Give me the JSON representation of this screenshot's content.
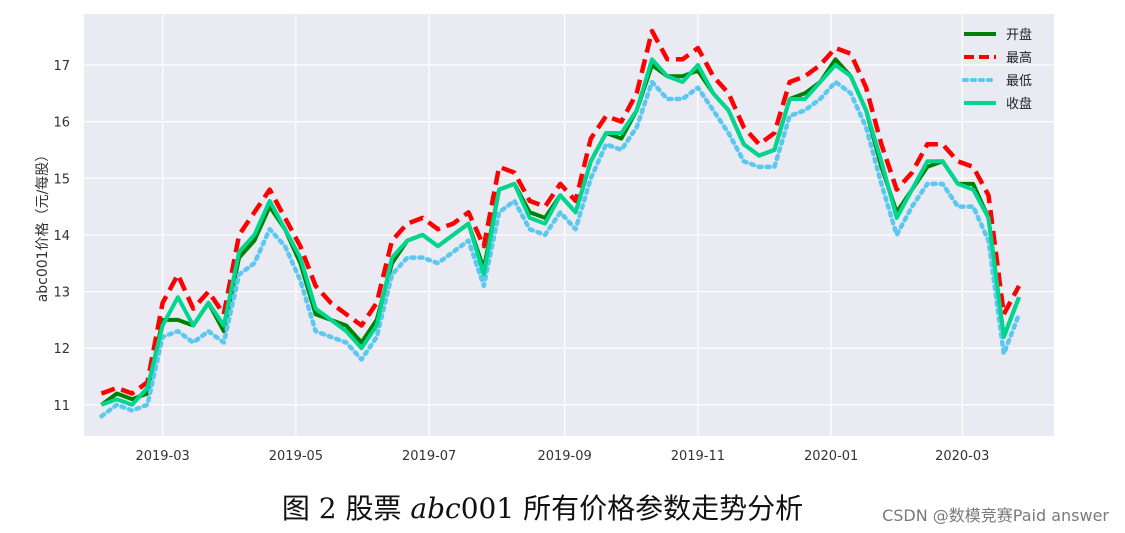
{
  "chart_data": {
    "type": "line",
    "title": "",
    "xlabel": "",
    "ylabel": "abc001价格（元/每股）",
    "x_tick_labels": [
      "2019-03",
      "2019-05",
      "2019-07",
      "2019-09",
      "2019-11",
      "2020-01",
      "2020-03"
    ],
    "x_tick_dates": [
      "2019-03-01",
      "2019-05-01",
      "2019-07-01",
      "2019-09-01",
      "2019-11-01",
      "2020-01-01",
      "2020-03-01"
    ],
    "xlim": [
      "2019-01-24",
      "2020-04-12"
    ],
    "y_ticks": [
      11,
      12,
      13,
      14,
      15,
      16,
      17
    ],
    "ylim": [
      10.45,
      17.9
    ],
    "grid": true,
    "legend_position": "top-right",
    "x": [
      "2019-02-01",
      "2019-02-08",
      "2019-02-15",
      "2019-02-22",
      "2019-03-01",
      "2019-03-08",
      "2019-03-15",
      "2019-03-22",
      "2019-03-29",
      "2019-04-05",
      "2019-04-12",
      "2019-04-19",
      "2019-04-26",
      "2019-05-03",
      "2019-05-10",
      "2019-05-17",
      "2019-05-24",
      "2019-05-31",
      "2019-06-07",
      "2019-06-14",
      "2019-06-21",
      "2019-06-28",
      "2019-07-05",
      "2019-07-12",
      "2019-07-19",
      "2019-07-26",
      "2019-08-02",
      "2019-08-09",
      "2019-08-16",
      "2019-08-23",
      "2019-08-30",
      "2019-09-06",
      "2019-09-13",
      "2019-09-20",
      "2019-09-27",
      "2019-10-04",
      "2019-10-11",
      "2019-10-18",
      "2019-10-25",
      "2019-11-01",
      "2019-11-08",
      "2019-11-15",
      "2019-11-22",
      "2019-11-29",
      "2019-12-06",
      "2019-12-13",
      "2019-12-20",
      "2019-12-27",
      "2020-01-03",
      "2020-01-10",
      "2020-01-17",
      "2020-01-24",
      "2020-01-31",
      "2020-02-07",
      "2020-02-14",
      "2020-02-21",
      "2020-02-28",
      "2020-03-06",
      "2020-03-13",
      "2020-03-20",
      "2020-03-27"
    ],
    "series": [
      {
        "name": "开盘",
        "color": "#008000",
        "dash": "solid",
        "values": [
          11.0,
          11.2,
          11.1,
          11.2,
          12.5,
          12.5,
          12.4,
          12.8,
          12.3,
          13.6,
          13.9,
          14.5,
          14.1,
          13.5,
          12.6,
          12.5,
          12.4,
          12.1,
          12.5,
          13.5,
          13.9,
          14.0,
          13.8,
          14.0,
          14.2,
          13.4,
          14.8,
          14.9,
          14.4,
          14.3,
          14.7,
          14.4,
          15.3,
          15.8,
          15.7,
          16.2,
          17.0,
          16.8,
          16.8,
          16.9,
          16.5,
          16.2,
          15.6,
          15.4,
          15.5,
          16.4,
          16.5,
          16.7,
          17.1,
          16.8,
          16.2,
          15.2,
          14.4,
          14.8,
          15.2,
          15.3,
          14.9,
          14.9,
          14.3,
          12.2,
          12.9
        ]
      },
      {
        "name": "最高",
        "color": "#ff0000",
        "dash": "dashed",
        "values": [
          11.2,
          11.3,
          11.2,
          11.4,
          12.8,
          13.3,
          12.7,
          13.0,
          12.6,
          14.0,
          14.4,
          14.8,
          14.3,
          13.8,
          13.1,
          12.8,
          12.6,
          12.4,
          12.8,
          13.9,
          14.2,
          14.3,
          14.1,
          14.2,
          14.4,
          13.8,
          15.2,
          15.1,
          14.6,
          14.5,
          14.9,
          14.6,
          15.7,
          16.1,
          16.0,
          16.5,
          17.6,
          17.1,
          17.1,
          17.3,
          16.8,
          16.5,
          15.9,
          15.6,
          15.8,
          16.7,
          16.8,
          17.0,
          17.3,
          17.2,
          16.6,
          15.6,
          14.8,
          15.1,
          15.6,
          15.6,
          15.3,
          15.2,
          14.7,
          12.6,
          13.1
        ]
      },
      {
        "name": "最低",
        "color": "#5bc8f0",
        "dash": "dotted",
        "values": [
          10.8,
          11.0,
          10.9,
          11.0,
          12.2,
          12.3,
          12.1,
          12.3,
          12.1,
          13.3,
          13.5,
          14.1,
          13.8,
          13.2,
          12.3,
          12.2,
          12.1,
          11.8,
          12.2,
          13.3,
          13.6,
          13.6,
          13.5,
          13.7,
          13.9,
          13.1,
          14.4,
          14.6,
          14.1,
          14.0,
          14.4,
          14.1,
          15.0,
          15.6,
          15.5,
          15.9,
          16.7,
          16.4,
          16.4,
          16.6,
          16.2,
          15.8,
          15.3,
          15.2,
          15.2,
          16.1,
          16.2,
          16.4,
          16.7,
          16.5,
          15.9,
          14.9,
          14.0,
          14.5,
          14.9,
          14.9,
          14.5,
          14.5,
          13.9,
          11.9,
          12.6
        ]
      },
      {
        "name": "收盘",
        "color": "#00d68f",
        "dash": "solid",
        "values": [
          11.0,
          11.1,
          11.0,
          11.3,
          12.4,
          12.9,
          12.4,
          12.8,
          12.4,
          13.7,
          14.0,
          14.6,
          14.1,
          13.6,
          12.7,
          12.5,
          12.3,
          12.0,
          12.4,
          13.6,
          13.9,
          14.0,
          13.8,
          14.0,
          14.2,
          13.3,
          14.8,
          14.9,
          14.3,
          14.2,
          14.7,
          14.4,
          15.3,
          15.8,
          15.8,
          16.2,
          17.1,
          16.8,
          16.7,
          17.0,
          16.5,
          16.2,
          15.6,
          15.4,
          15.5,
          16.4,
          16.4,
          16.7,
          17.0,
          16.8,
          16.2,
          15.3,
          14.3,
          14.8,
          15.3,
          15.3,
          14.9,
          14.8,
          14.3,
          12.2,
          12.9
        ]
      }
    ]
  },
  "caption": {
    "prefix": "图 2  股票 ",
    "italic": "abc",
    "suffix": "001 所有价格参数走势分析"
  },
  "watermark": "CSDN @数模竞赛Paid answer"
}
